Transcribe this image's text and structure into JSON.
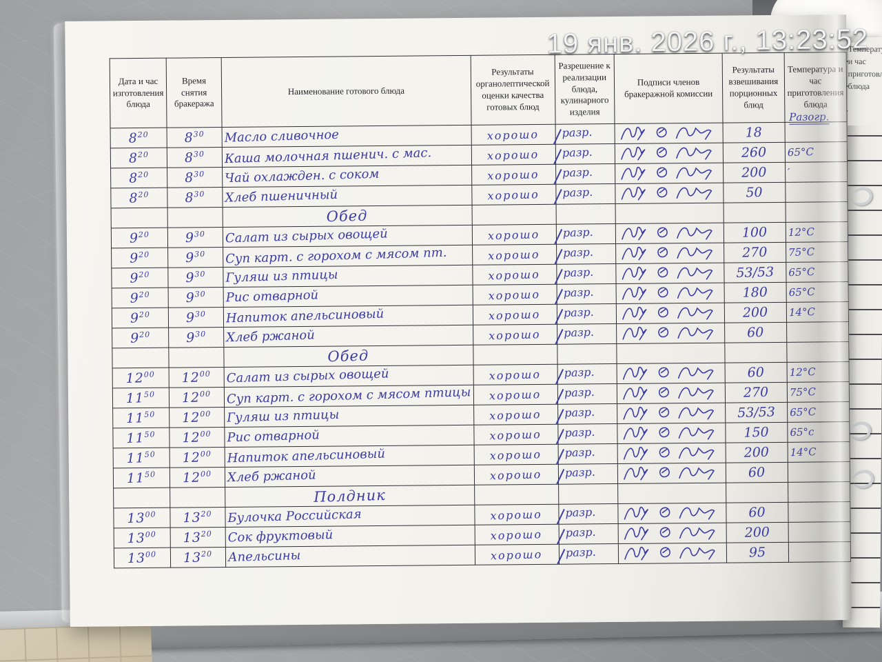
{
  "photo": {
    "timestamp": "19 янв. 2026 г., 13:23:52"
  },
  "journal": {
    "ink_color": "#3c3ca2",
    "headers": {
      "prep": "Дата и час изготовления блюда",
      "check": "Время снятия бракеража",
      "dish": "Наименование готового блюда",
      "evaluation": "Результаты органолептической оценки качества готовых блюд",
      "permission": "Разрешение к реализации блюда, кулинарного изделия",
      "signatures": "Подписи членов бракеражной комиссии",
      "weight": "Результаты взвешивания порционных блюд",
      "temp": "Температура и час приготовления блюда"
    },
    "temp_header_note": "Разогр.",
    "signature_marks_per_row": 3,
    "rows": [
      {
        "type": "dish",
        "prep_h": "8",
        "prep_m": "20",
        "check_h": "8",
        "check_m": "30",
        "dish": "Масло сливочное",
        "eval": "хорошо",
        "perm": "разр.",
        "weight": "18",
        "temp": ""
      },
      {
        "type": "dish",
        "prep_h": "8",
        "prep_m": "20",
        "check_h": "8",
        "check_m": "30",
        "dish": "Каша молочная пшенич. с мас.",
        "eval": "хорошо",
        "perm": "разр.",
        "weight": "260",
        "temp": "65°C"
      },
      {
        "type": "dish",
        "prep_h": "8",
        "prep_m": "20",
        "check_h": "8",
        "check_m": "30",
        "dish": "Чай охлажден. с соком",
        "eval": "хорошо",
        "perm": "разр.",
        "weight": "200",
        "temp": "′"
      },
      {
        "type": "dish",
        "prep_h": "8",
        "prep_m": "20",
        "check_h": "8",
        "check_m": "30",
        "dish": "Хлеб пшеничный",
        "eval": "хорошо",
        "perm": "разр.",
        "weight": "50",
        "temp": ""
      },
      {
        "type": "section",
        "label": "Обед"
      },
      {
        "type": "dish",
        "prep_h": "9",
        "prep_m": "20",
        "check_h": "9",
        "check_m": "30",
        "dish": "Салат из сырых овощей",
        "eval": "хорошо",
        "perm": "разр.",
        "weight": "100",
        "temp": "12°C"
      },
      {
        "type": "dish",
        "prep_h": "9",
        "prep_m": "20",
        "check_h": "9",
        "check_m": "30",
        "dish": "Суп карт. с горохом с мясом пт.",
        "eval": "хорошо",
        "perm": "разр.",
        "weight": "270",
        "temp": "75°C"
      },
      {
        "type": "dish",
        "prep_h": "9",
        "prep_m": "20",
        "check_h": "9",
        "check_m": "30",
        "dish": "Гуляш из птицы",
        "eval": "хорошо",
        "perm": "разр.",
        "weight": "53/53",
        "temp": "65°C"
      },
      {
        "type": "dish",
        "prep_h": "9",
        "prep_m": "20",
        "check_h": "9",
        "check_m": "30",
        "dish": "Рис отварной",
        "eval": "хорошо",
        "perm": "разр.",
        "weight": "180",
        "temp": "65°C"
      },
      {
        "type": "dish",
        "prep_h": "9",
        "prep_m": "20",
        "check_h": "9",
        "check_m": "30",
        "dish": "Напиток апельсиновый",
        "eval": "хорошо",
        "perm": "разр.",
        "weight": "200",
        "temp": "14°C"
      },
      {
        "type": "dish",
        "prep_h": "9",
        "prep_m": "20",
        "check_h": "9",
        "check_m": "30",
        "dish": "Хлеб ржаной",
        "eval": "хорошо",
        "perm": "разр.",
        "weight": "60",
        "temp": ""
      },
      {
        "type": "section",
        "label": "Обед"
      },
      {
        "type": "dish",
        "prep_h": "12",
        "prep_m": "00",
        "check_h": "12",
        "check_m": "00",
        "dish": "Салат из сырых овощей",
        "eval": "хорошо",
        "perm": "разр.",
        "weight": "60",
        "temp": "12°C"
      },
      {
        "type": "dish",
        "prep_h": "11",
        "prep_m": "50",
        "check_h": "12",
        "check_m": "00",
        "dish": "Суп карт. с горохом с мясом птицы",
        "eval": "хорошо",
        "perm": "разр.",
        "weight": "270",
        "temp": "75°C"
      },
      {
        "type": "dish",
        "prep_h": "11",
        "prep_m": "50",
        "check_h": "12",
        "check_m": "00",
        "dish": "Гуляш из птицы",
        "eval": "хорошо",
        "perm": "разр.",
        "weight": "53/53",
        "temp": "65°C"
      },
      {
        "type": "dish",
        "prep_h": "11",
        "prep_m": "50",
        "check_h": "12",
        "check_m": "00",
        "dish": "Рис отварной",
        "eval": "хорошо",
        "perm": "разр.",
        "weight": "150",
        "temp": "65°c"
      },
      {
        "type": "dish",
        "prep_h": "11",
        "prep_m": "50",
        "check_h": "12",
        "check_m": "00",
        "dish": "Напиток апельсиновый",
        "eval": "хорошо",
        "perm": "разр.",
        "weight": "200",
        "temp": "14°C"
      },
      {
        "type": "dish",
        "prep_h": "11",
        "prep_m": "50",
        "check_h": "12",
        "check_m": "00",
        "dish": "Хлеб ржаной",
        "eval": "хорошо",
        "perm": "разр.",
        "weight": "60",
        "temp": ""
      },
      {
        "type": "section",
        "label": "Полдник"
      },
      {
        "type": "dish",
        "prep_h": "13",
        "prep_m": "00",
        "check_h": "13",
        "check_m": "20",
        "dish": "Булочка Российская",
        "eval": "хорошо",
        "perm": "разр.",
        "weight": "60",
        "temp": ""
      },
      {
        "type": "dish",
        "prep_h": "13",
        "prep_m": "00",
        "check_h": "13",
        "check_m": "20",
        "dish": "Сок фруктовый",
        "eval": "хорошо",
        "perm": "разр.",
        "weight": "200",
        "temp": ""
      },
      {
        "type": "dish",
        "prep_h": "13",
        "prep_m": "00",
        "check_h": "13",
        "check_m": "20",
        "dish": "Апельсины",
        "eval": "хорошо",
        "perm": "разр.",
        "weight": "95",
        "temp": ""
      }
    ]
  }
}
